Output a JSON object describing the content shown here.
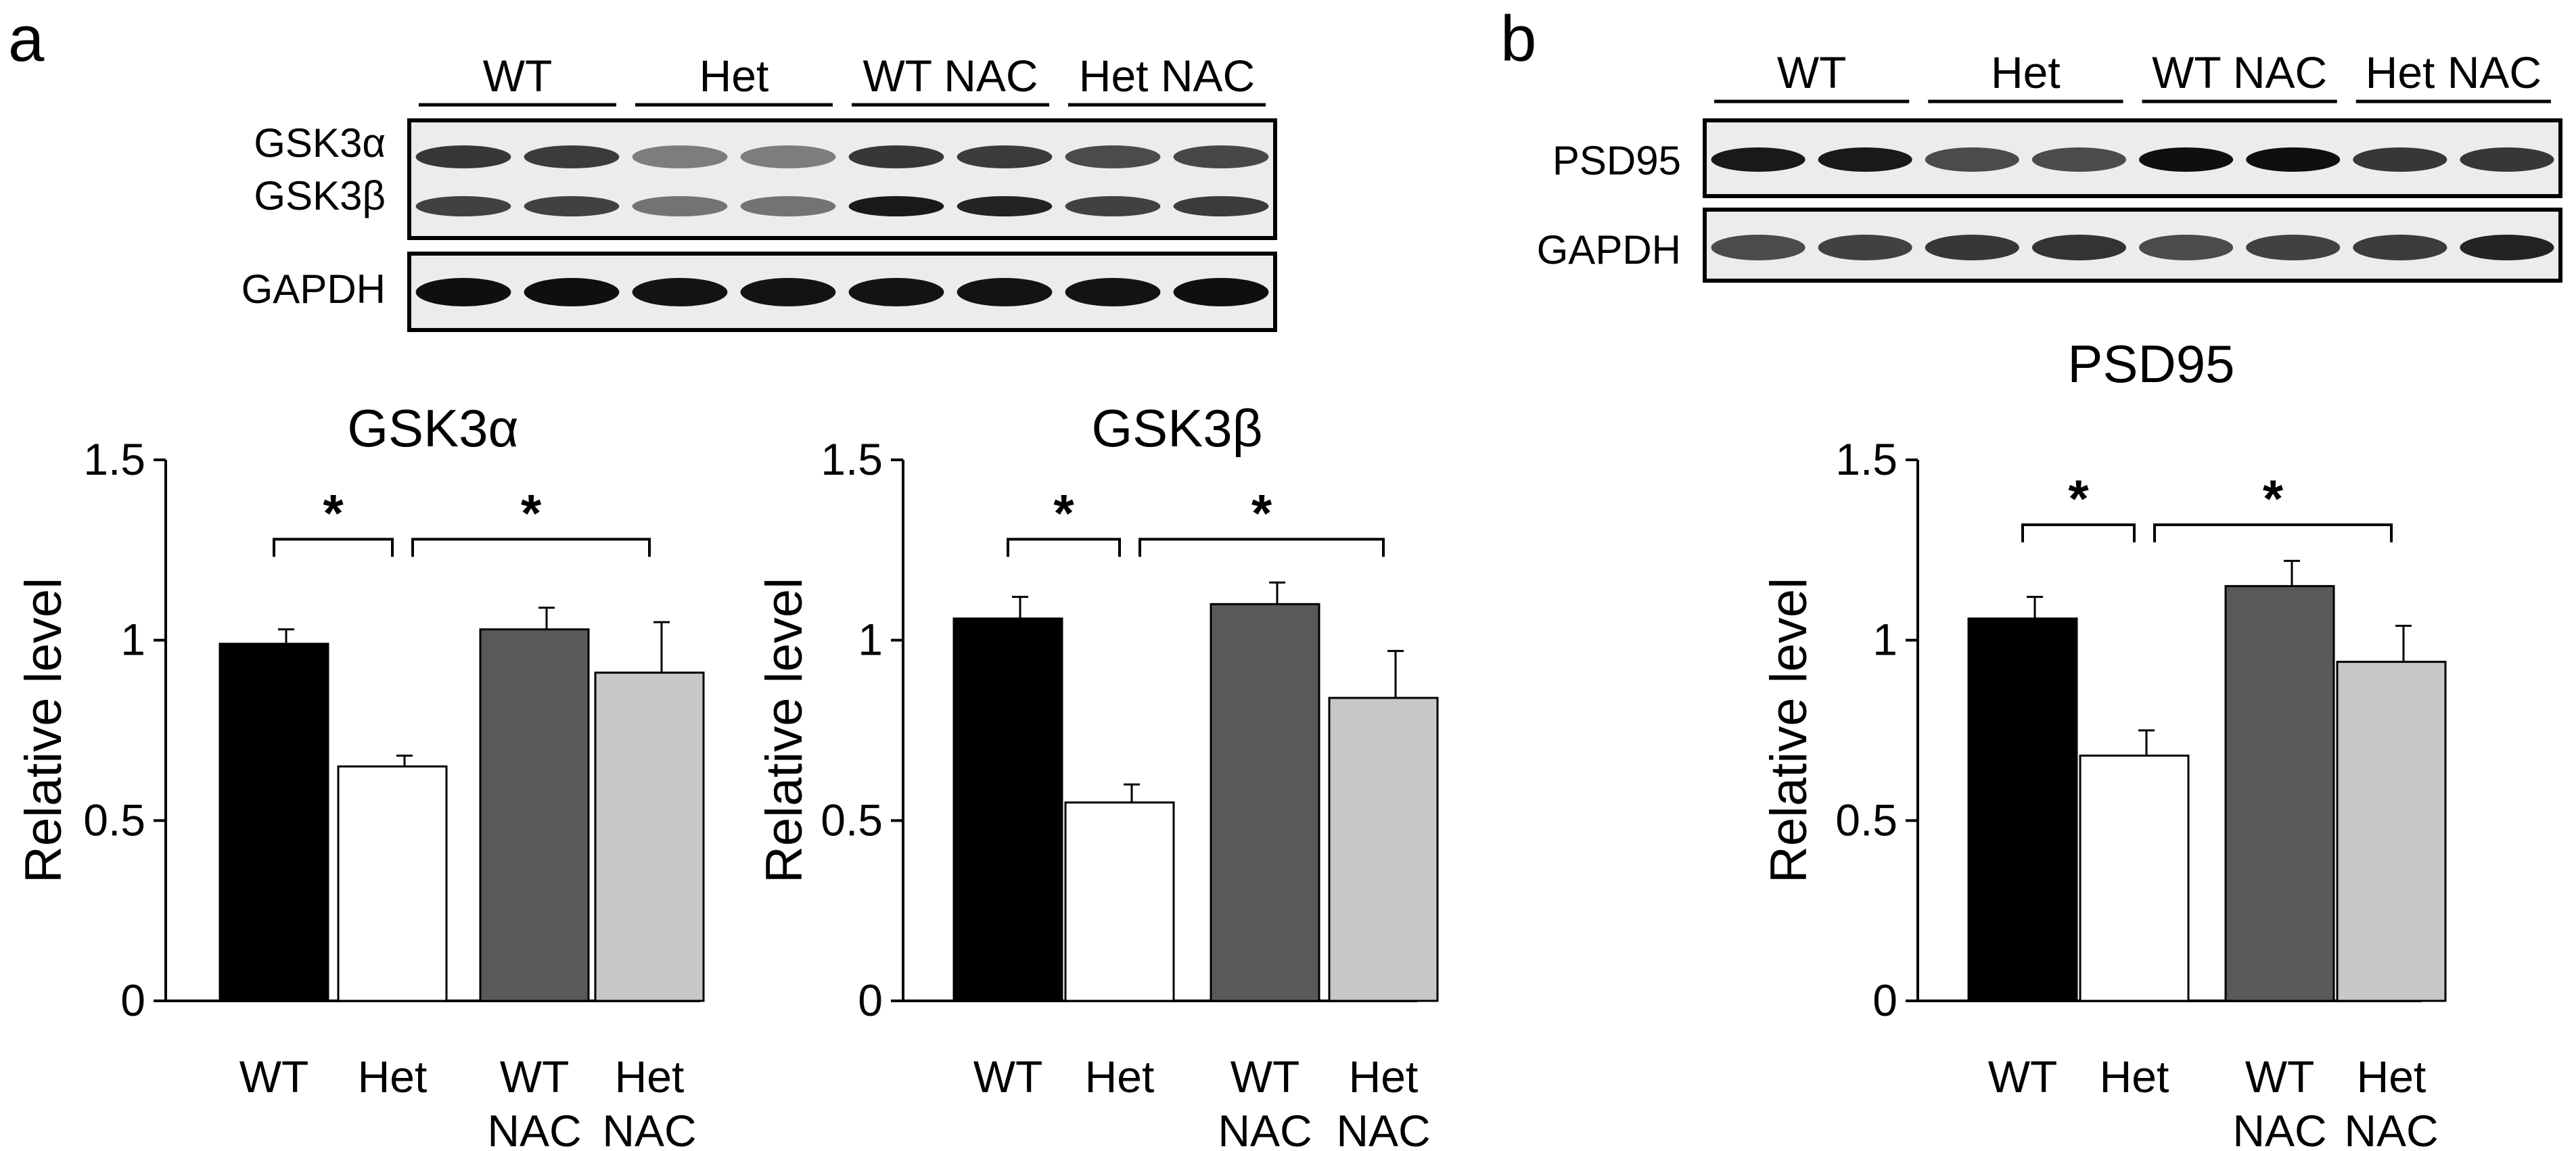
{
  "panels": [
    {
      "id": "a",
      "letter": "a"
    },
    {
      "id": "b",
      "letter": "b"
    }
  ],
  "blots": [
    {
      "panel": "a",
      "lanes": [
        "WT",
        "Het",
        "WT NAC",
        "Het NAC"
      ],
      "rows": [
        {
          "labels": [
            "GSK3α",
            "GSK3β"
          ],
          "band_intensity": [
            [
              0.8,
              0.78,
              0.45,
              0.45,
              0.8,
              0.78,
              0.7,
              0.72
            ],
            [
              0.75,
              0.75,
              0.5,
              0.5,
              0.95,
              0.9,
              0.75,
              0.78
            ]
          ]
        },
        {
          "labels": [
            "GAPDH"
          ],
          "band_intensity": [
            [
              1.0,
              1.0,
              0.98,
              0.98,
              0.98,
              0.98,
              0.98,
              1.0
            ]
          ]
        }
      ]
    },
    {
      "panel": "b",
      "lanes": [
        "WT",
        "Het",
        "WT NAC",
        "Het NAC"
      ],
      "rows": [
        {
          "labels": [
            "PSD95"
          ],
          "band_intensity": [
            [
              0.95,
              0.95,
              0.7,
              0.7,
              1.0,
              1.0,
              0.8,
              0.8
            ]
          ]
        },
        {
          "labels": [
            "GAPDH"
          ],
          "band_intensity": [
            [
              0.7,
              0.75,
              0.8,
              0.82,
              0.7,
              0.75,
              0.78,
              0.9
            ]
          ]
        }
      ]
    }
  ],
  "chart_data": [
    {
      "panel": "a",
      "type": "bar",
      "title": "GSK3α",
      "ylabel": "Relative level",
      "xlabel": "",
      "categories": [
        [
          "WT"
        ],
        [
          "Het"
        ],
        [
          "WT",
          "NAC"
        ],
        [
          "Het",
          "NAC"
        ]
      ],
      "values": [
        0.99,
        0.65,
        1.03,
        0.91
      ],
      "errors": [
        0.04,
        0.03,
        0.06,
        0.14
      ],
      "colors": [
        "#000000",
        "#ffffff",
        "#595959",
        "#c8c8c8"
      ],
      "ylim": [
        0,
        1.5
      ],
      "yticks": [
        "0",
        "0.5",
        "1",
        "1.5"
      ],
      "yticks_values": [
        0,
        0.5,
        1,
        1.5
      ],
      "grid": false,
      "significance": [
        {
          "from": 0,
          "to": 1,
          "level": 1.28,
          "label": "*"
        },
        {
          "from": 1,
          "to": 3,
          "level": 1.28,
          "label": "*"
        }
      ]
    },
    {
      "panel": "a",
      "type": "bar",
      "title": "GSK3β",
      "ylabel": "Relative level",
      "xlabel": "",
      "categories": [
        [
          "WT"
        ],
        [
          "Het"
        ],
        [
          "WT",
          "NAC"
        ],
        [
          "Het",
          "NAC"
        ]
      ],
      "values": [
        1.06,
        0.55,
        1.1,
        0.84
      ],
      "errors": [
        0.06,
        0.05,
        0.06,
        0.13
      ],
      "colors": [
        "#000000",
        "#ffffff",
        "#595959",
        "#c8c8c8"
      ],
      "ylim": [
        0,
        1.5
      ],
      "yticks": [
        "0",
        "0.5",
        "1",
        "1.5"
      ],
      "yticks_values": [
        0,
        0.5,
        1,
        1.5
      ],
      "grid": false,
      "significance": [
        {
          "from": 0,
          "to": 1,
          "level": 1.28,
          "label": "*"
        },
        {
          "from": 1,
          "to": 3,
          "level": 1.28,
          "label": "*"
        }
      ]
    },
    {
      "panel": "b",
      "type": "bar",
      "title": "PSD95",
      "ylabel": "Relative level",
      "xlabel": "",
      "categories": [
        [
          "WT"
        ],
        [
          "Het"
        ],
        [
          "WT",
          "NAC"
        ],
        [
          "Het",
          "NAC"
        ]
      ],
      "values": [
        1.06,
        0.68,
        1.15,
        0.94
      ],
      "errors": [
        0.06,
        0.07,
        0.07,
        0.1
      ],
      "colors": [
        "#000000",
        "#ffffff",
        "#595959",
        "#c8c8c8"
      ],
      "ylim": [
        0,
        1.5
      ],
      "yticks": [
        "0",
        "0.5",
        "1",
        "1.5"
      ],
      "yticks_values": [
        0,
        0.5,
        1,
        1.5
      ],
      "grid": false,
      "significance": [
        {
          "from": 0,
          "to": 1,
          "level": 1.32,
          "label": "*"
        },
        {
          "from": 1,
          "to": 3,
          "level": 1.32,
          "label": "*"
        }
      ]
    }
  ]
}
